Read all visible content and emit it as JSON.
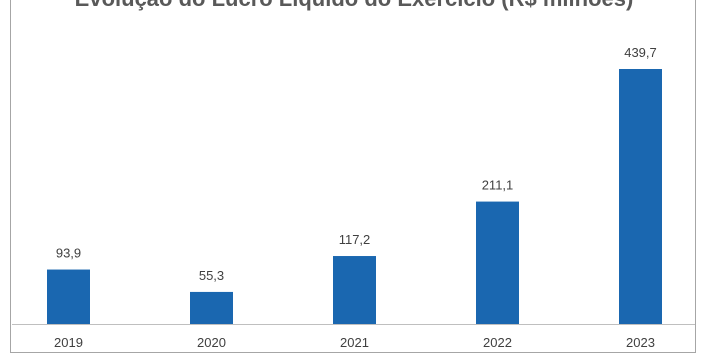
{
  "chart_data": {
    "type": "bar",
    "title": "Evolução do Lucro Líquido do Exercício (R$ milhões)",
    "categories": [
      "2019",
      "2020",
      "2021",
      "2022",
      "2023"
    ],
    "values": [
      93.9,
      55.3,
      117.2,
      211.1,
      439.7
    ],
    "value_labels": [
      "93,9",
      "55,3",
      "117,2",
      "211,1",
      "439,7"
    ],
    "bar_color": "#1a67b0",
    "xlabel": "",
    "ylabel": "",
    "ylim": [
      0,
      439.7
    ],
    "grid": false,
    "legend": "none"
  }
}
